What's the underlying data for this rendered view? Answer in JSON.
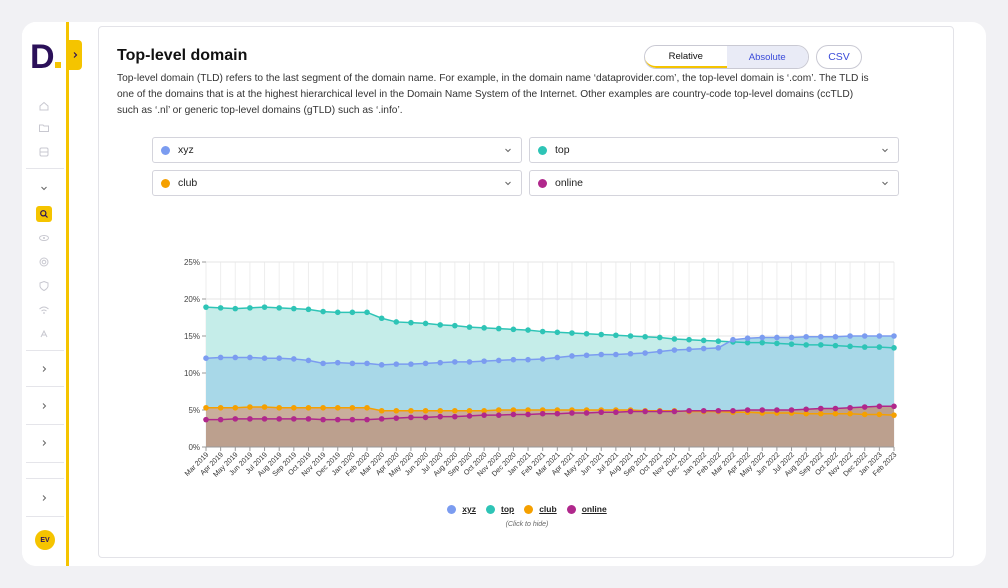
{
  "sidebar": {
    "logo_text": "D",
    "avatar_initials": "EV",
    "accent": "#f5c400",
    "brand": "#2b1059",
    "icons": [
      "home-icon",
      "folder-icon",
      "database-icon",
      "chevron-down-icon",
      "search-icon",
      "eye-icon",
      "fingerprint-icon",
      "shield-icon",
      "wifi-icon",
      "broadcast-icon"
    ]
  },
  "header": {
    "title": "Top-level domain",
    "description": "Top-level domain (TLD) refers to the last segment of the domain name. For example, in the domain name ‘dataprovider.com’, the top-level domain is ‘.com’. The TLD is one of the domains that is at the highest hierarchical level in the Domain Name System of the Internet. Other examples are country-code top-level domains (ccTLD) such as ‘.nl’ or generic top-level domains (gTLD) such as ‘.info’.",
    "toggle": {
      "relative": "Relative",
      "absolute": "Absolute"
    },
    "csv": "CSV"
  },
  "selectors": [
    {
      "label": "xyz",
      "color": "#7b9cf0"
    },
    {
      "label": "top",
      "color": "#2ec4b6"
    },
    {
      "label": "club",
      "color": "#f5a000"
    },
    {
      "label": "online",
      "color": "#b0288c"
    }
  ],
  "legend": {
    "items": [
      "xyz",
      "top",
      "club",
      "online"
    ],
    "hint": "(Click to hide)"
  },
  "chart_data": {
    "type": "area",
    "title": "",
    "xlabel": "",
    "ylabel": "",
    "ylim": [
      0,
      25
    ],
    "yticks": [
      "0%",
      "5%",
      "10%",
      "15%",
      "20%",
      "25%"
    ],
    "x": [
      "Mar 2019",
      "Apr 2019",
      "May 2019",
      "Jun 2019",
      "Jul 2019",
      "Aug 2019",
      "Sep 2019",
      "Oct 2019",
      "Nov 2019",
      "Dec 2019",
      "Jan 2020",
      "Feb 2020",
      "Mar 2020",
      "Apr 2020",
      "May 2020",
      "Jun 2020",
      "Jul 2020",
      "Aug 2020",
      "Sep 2020",
      "Oct 2020",
      "Nov 2020",
      "Dec 2020",
      "Jan 2021",
      "Feb 2021",
      "Mar 2021",
      "Apr 2021",
      "May 2021",
      "Jun 2021",
      "Jul 2021",
      "Aug 2021",
      "Sep 2021",
      "Oct 2021",
      "Nov 2021",
      "Dec 2021",
      "Jan 2022",
      "Feb 2022",
      "Mar 2022",
      "Apr 2022",
      "May 2022",
      "Jun 2022",
      "Jul 2022",
      "Aug 2022",
      "Sep 2022",
      "Oct 2022",
      "Nov 2022",
      "Dec 2022",
      "Jan 2023",
      "Feb 2023"
    ],
    "series": [
      {
        "name": "top",
        "color": "#2ec4b6",
        "fill": "#c5ede9",
        "values": [
          18.9,
          18.8,
          18.7,
          18.8,
          18.9,
          18.8,
          18.7,
          18.6,
          18.3,
          18.2,
          18.2,
          18.2,
          17.4,
          16.9,
          16.8,
          16.7,
          16.5,
          16.4,
          16.2,
          16.1,
          16.0,
          15.9,
          15.8,
          15.6,
          15.5,
          15.4,
          15.3,
          15.2,
          15.1,
          15.0,
          14.9,
          14.8,
          14.6,
          14.5,
          14.4,
          14.3,
          14.2,
          14.1,
          14.1,
          14.0,
          13.9,
          13.8,
          13.8,
          13.7,
          13.6,
          13.5,
          13.5,
          13.4
        ]
      },
      {
        "name": "xyz",
        "color": "#7b9cf0",
        "fill": "#a8d8e8",
        "values": [
          12.0,
          12.1,
          12.1,
          12.1,
          12.0,
          12.0,
          11.9,
          11.7,
          11.3,
          11.4,
          11.3,
          11.3,
          11.1,
          11.2,
          11.2,
          11.3,
          11.4,
          11.5,
          11.5,
          11.6,
          11.7,
          11.8,
          11.8,
          11.9,
          12.1,
          12.3,
          12.4,
          12.5,
          12.5,
          12.6,
          12.7,
          12.9,
          13.1,
          13.2,
          13.3,
          13.4,
          14.5,
          14.7,
          14.8,
          14.8,
          14.8,
          14.9,
          14.9,
          14.9,
          15.0,
          15.0,
          15.0,
          15.0
        ]
      },
      {
        "name": "club",
        "color": "#f5a000",
        "fill": "#c9ae9c",
        "values": [
          5.3,
          5.3,
          5.3,
          5.4,
          5.4,
          5.3,
          5.3,
          5.3,
          5.3,
          5.3,
          5.3,
          5.3,
          4.9,
          4.9,
          4.9,
          4.9,
          4.9,
          4.9,
          4.9,
          4.9,
          5.0,
          5.0,
          5.0,
          5.0,
          5.0,
          5.0,
          5.0,
          5.0,
          5.0,
          5.0,
          4.9,
          4.9,
          4.9,
          4.8,
          4.8,
          4.8,
          4.7,
          4.7,
          4.6,
          4.6,
          4.6,
          4.5,
          4.5,
          4.5,
          4.5,
          4.4,
          4.4,
          4.3
        ]
      },
      {
        "name": "online",
        "color": "#b0288c",
        "fill": "#bca08e",
        "values": [
          3.7,
          3.7,
          3.8,
          3.8,
          3.8,
          3.8,
          3.8,
          3.8,
          3.7,
          3.7,
          3.7,
          3.7,
          3.8,
          3.9,
          4.0,
          4.0,
          4.1,
          4.1,
          4.2,
          4.3,
          4.3,
          4.4,
          4.4,
          4.5,
          4.5,
          4.6,
          4.6,
          4.7,
          4.7,
          4.8,
          4.8,
          4.8,
          4.8,
          4.9,
          4.9,
          4.9,
          4.9,
          5.0,
          5.0,
          5.0,
          5.0,
          5.1,
          5.2,
          5.2,
          5.3,
          5.4,
          5.5,
          5.5
        ]
      }
    ]
  }
}
